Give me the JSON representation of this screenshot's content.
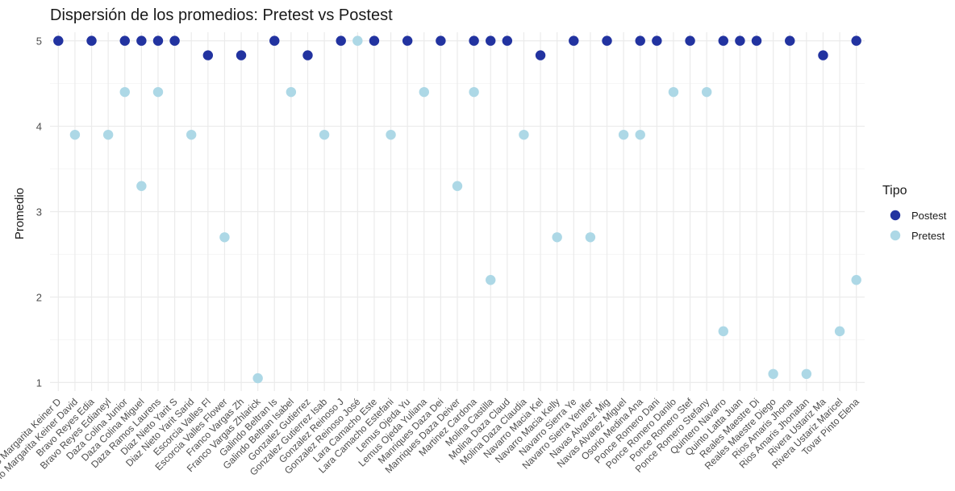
{
  "chart_data": {
    "type": "scatter",
    "title": "Dispersión de los promedios: Pretest vs Postest",
    "xlabel": "",
    "ylabel": "Promedio",
    "ylim": [
      0.9,
      5.1
    ],
    "yticks": [
      1,
      2,
      3,
      4,
      5
    ],
    "grid": true,
    "legend": {
      "title": "Tipo",
      "position": "right"
    },
    "categories": [
      "Agudelo Margarita Keiner D",
      "Agudelo Margarita Keiner David",
      "Bravo Reyes Edia",
      "Bravo Reyes Edianeyl",
      "Daza Colina Junior",
      "Daza Colina Miguel",
      "Daza Ramos Laurens",
      "Diaz Nieto Yarit S",
      "Diaz Nieto Yarit Sarid",
      "Escorcia Valles Fl",
      "Escorcia Valles Flower",
      "Franco Vargas Zh",
      "Franco Vargas Zhlarick",
      "Galindo Beltran Is",
      "Galindo Beltran Isabel",
      "Gonzalez Gutierrez",
      "Gonzalez Gutierrez Isab",
      "Gonzalez Reinoso J",
      "Gonzalez Reinoso José",
      "Lara Camacho Este",
      "Lara Camacho Estefani",
      "Lemus Ojeda Yu",
      "Lemus Ojeda Yuliana",
      "Manriques Daza Dei",
      "Manriques Daza Deiver",
      "Martinez Cardona",
      "Molina Castilla",
      "Molina Daza Claud",
      "Molina Daza Claudia",
      "Navarro Macia Kel",
      "Navarro Macia Kelly",
      "Navarro Sierra Ye",
      "Navarro Sierra Yenifer",
      "Navas Alvarez Mig",
      "Navas Alvarez Miguel",
      "Osorio Medina Ana",
      "Ponce Romero Dani",
      "Ponce Romero Danilo",
      "Ponce Romero Stef",
      "Ponce Romero Stefany",
      "Quintero Navarro",
      "Quinto Latta Juan",
      "Reales Maestre Di",
      "Reales Maestre Diego",
      "Rios Amaris Jhona",
      "Rios Amaris Jhonatan",
      "Rivera Ustariz Ma",
      "Rivera Ustariz Maricel",
      "Tovar Pinto Elena"
    ],
    "series": [
      {
        "name": "Postest",
        "color": "#2233a0",
        "points": [
          {
            "x": "Agudelo Margarita Keiner D",
            "y": 5.0
          },
          {
            "x": "Bravo Reyes Edia",
            "y": 5.0
          },
          {
            "x": "Daza Colina Junior",
            "y": 5.0
          },
          {
            "x": "Daza Colina Miguel",
            "y": 5.0
          },
          {
            "x": "Daza Ramos Laurens",
            "y": 5.0
          },
          {
            "x": "Diaz Nieto Yarit S",
            "y": 5.0
          },
          {
            "x": "Escorcia Valles Fl",
            "y": 4.83
          },
          {
            "x": "Franco Vargas Zh",
            "y": 4.83
          },
          {
            "x": "Galindo Beltran Is",
            "y": 5.0
          },
          {
            "x": "Gonzalez Gutierrez",
            "y": 4.83
          },
          {
            "x": "Gonzalez Reinoso J",
            "y": 5.0
          },
          {
            "x": "Lara Camacho Este",
            "y": 5.0
          },
          {
            "x": "Lemus Ojeda Yu",
            "y": 5.0
          },
          {
            "x": "Manriques Daza Dei",
            "y": 5.0
          },
          {
            "x": "Martinez Cardona",
            "y": 5.0
          },
          {
            "x": "Molina Castilla",
            "y": 5.0
          },
          {
            "x": "Molina Daza Claud",
            "y": 5.0
          },
          {
            "x": "Navarro Macia Kel",
            "y": 4.83
          },
          {
            "x": "Navarro Sierra Ye",
            "y": 5.0
          },
          {
            "x": "Navas Alvarez Mig",
            "y": 5.0
          },
          {
            "x": "Osorio Medina Ana",
            "y": 5.0
          },
          {
            "x": "Ponce Romero Dani",
            "y": 5.0
          },
          {
            "x": "Ponce Romero Stef",
            "y": 5.0
          },
          {
            "x": "Quintero Navarro",
            "y": 5.0
          },
          {
            "x": "Quinto Latta Juan",
            "y": 5.0
          },
          {
            "x": "Reales Maestre Di",
            "y": 5.0
          },
          {
            "x": "Rios Amaris Jhona",
            "y": 5.0
          },
          {
            "x": "Rivera Ustariz Ma",
            "y": 4.83
          },
          {
            "x": "Tovar Pinto Elena",
            "y": 5.0
          }
        ]
      },
      {
        "name": "Pretest",
        "color": "#add8e6",
        "points": [
          {
            "x": "Agudelo Margarita Keiner David",
            "y": 3.9
          },
          {
            "x": "Bravo Reyes Edianeyl",
            "y": 3.9
          },
          {
            "x": "Daza Colina Junior",
            "y": 4.4
          },
          {
            "x": "Daza Colina Miguel",
            "y": 3.3
          },
          {
            "x": "Daza Ramos Laurens",
            "y": 4.4
          },
          {
            "x": "Diaz Nieto Yarit Sarid",
            "y": 3.9
          },
          {
            "x": "Escorcia Valles Flower",
            "y": 2.7
          },
          {
            "x": "Franco Vargas Zhlarick",
            "y": 1.05
          },
          {
            "x": "Galindo Beltran Isabel",
            "y": 4.4
          },
          {
            "x": "Gonzalez Gutierrez Isab",
            "y": 3.9
          },
          {
            "x": "Gonzalez Reinoso José",
            "y": 5.0
          },
          {
            "x": "Lara Camacho Estefani",
            "y": 3.9
          },
          {
            "x": "Lemus Ojeda Yuliana",
            "y": 4.4
          },
          {
            "x": "Manriques Daza Deiver",
            "y": 3.3
          },
          {
            "x": "Martinez Cardona",
            "y": 4.4
          },
          {
            "x": "Molina Castilla",
            "y": 2.2
          },
          {
            "x": "Molina Daza Claudia",
            "y": 3.9
          },
          {
            "x": "Navarro Macia Kelly",
            "y": 2.7
          },
          {
            "x": "Navarro Sierra Yenifer",
            "y": 2.7
          },
          {
            "x": "Navas Alvarez Miguel",
            "y": 3.9
          },
          {
            "x": "Osorio Medina Ana",
            "y": 3.9
          },
          {
            "x": "Ponce Romero Danilo",
            "y": 4.4
          },
          {
            "x": "Ponce Romero Stefany",
            "y": 4.4
          },
          {
            "x": "Quintero Navarro",
            "y": 1.6
          },
          {
            "x": "Reales Maestre Diego",
            "y": 1.1
          },
          {
            "x": "Rios Amaris Jhonatan",
            "y": 1.1
          },
          {
            "x": "Rivera Ustariz Maricel",
            "y": 1.6
          },
          {
            "x": "Tovar Pinto Elena",
            "y": 2.2
          }
        ]
      }
    ]
  }
}
